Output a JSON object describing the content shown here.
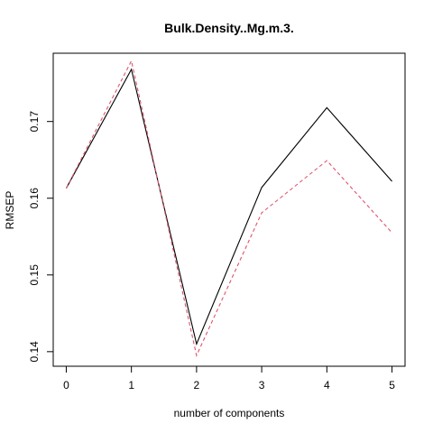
{
  "chart_data": {
    "type": "line",
    "title": "Bulk.Density..Mg.m.3.",
    "xlabel": "number of components",
    "ylabel": "RMSEP",
    "x": [
      0,
      1,
      2,
      3,
      4,
      5
    ],
    "x_ticks": [
      "0",
      "1",
      "2",
      "3",
      "4",
      "5"
    ],
    "y_ticks": [
      "0.14",
      "0.15",
      "0.16",
      "0.17"
    ],
    "xlim": [
      -0.2,
      5.2
    ],
    "ylim": [
      0.1381,
      0.1789
    ],
    "grid": false,
    "series": [
      {
        "values": [
          0.1613,
          0.1768,
          0.141,
          0.1614,
          0.1718,
          0.1622
        ],
        "color": "#000000",
        "style": "solid"
      },
      {
        "values": [
          0.1613,
          0.1779,
          0.1395,
          0.1581,
          0.1649,
          0.1555
        ],
        "color": "#DF536B",
        "style": "dashed"
      }
    ]
  }
}
